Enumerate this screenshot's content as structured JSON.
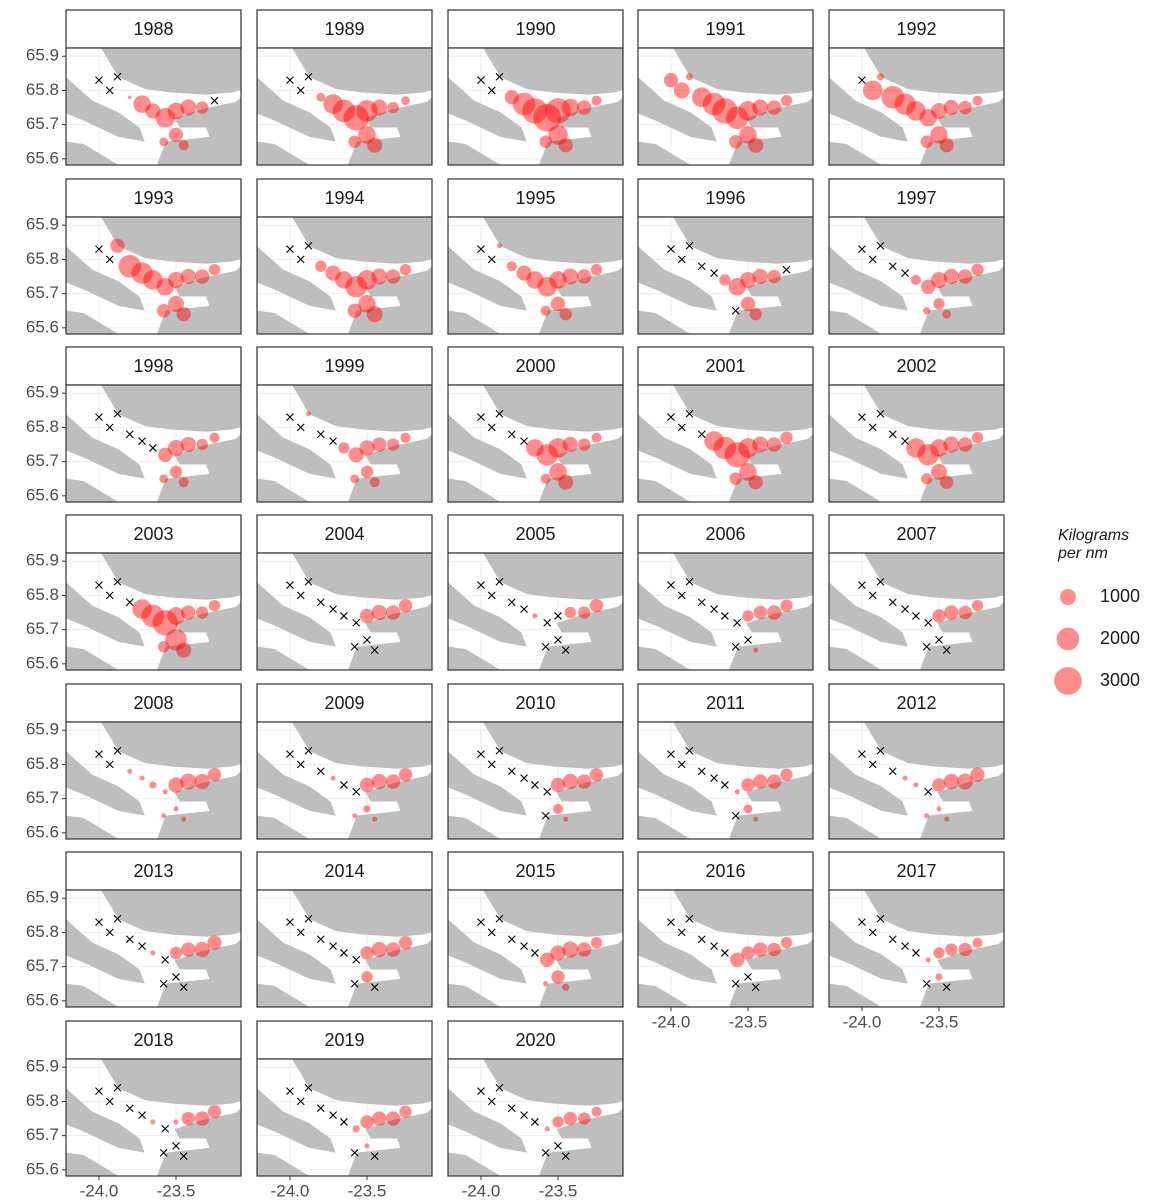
{
  "chart_data": {
    "type": "scatter",
    "x": [
      -24.0,
      -23.93,
      -23.88,
      -23.8,
      -23.72,
      -23.65,
      -23.57,
      -23.5,
      -23.42,
      -23.33,
      -23.25,
      -23.5,
      -23.45,
      -23.58
    ],
    "y": [
      65.83,
      65.8,
      65.84,
      65.78,
      65.76,
      65.74,
      65.72,
      65.74,
      65.75,
      65.75,
      65.77,
      65.67,
      65.64,
      65.65
    ],
    "xlim": [
      -24.214,
      -23.078
    ],
    "ylim": [
      65.582,
      65.924
    ],
    "xticks": [
      {
        "value": -24,
        "label": "-24.0"
      },
      -23.5
    ],
    "yticks": [
      65.6,
      65.7,
      65.8,
      65.9
    ],
    "grid": true,
    "color": "#ff0000",
    "legend_title": [
      "Kilograms",
      " per nm"
    ],
    "legend_values": [
      1000,
      2000,
      3000
    ],
    "facets": [
      {
        "title": "1988",
        "values": [
          0,
          0,
          0,
          50,
          1200,
          900,
          1500,
          1100,
          1000,
          600,
          0,
          800,
          400,
          300
        ]
      },
      {
        "title": "1989",
        "values": [
          0,
          0,
          0,
          300,
          1500,
          2000,
          2500,
          1800,
          1000,
          500,
          300,
          1200,
          900,
          600
        ]
      },
      {
        "title": "1990",
        "values": [
          0,
          0,
          0,
          800,
          2000,
          2500,
          3000,
          2500,
          1200,
          800,
          400,
          1500,
          800,
          600
        ]
      },
      {
        "title": "1991",
        "values": [
          800,
          1000,
          200,
          1500,
          2000,
          2500,
          2000,
          1500,
          1000,
          800,
          500,
          1200,
          900,
          700
        ]
      },
      {
        "title": "1992",
        "values": [
          0,
          1500,
          200,
          2000,
          1800,
          1500,
          1200,
          1000,
          900,
          700,
          400,
          1200,
          800,
          600
        ]
      },
      {
        "title": "1993",
        "values": [
          0,
          0,
          800,
          2000,
          1800,
          1500,
          1200,
          1000,
          900,
          800,
          500,
          1000,
          800,
          700
        ]
      },
      {
        "title": "1994",
        "values": [
          0,
          0,
          0,
          500,
          900,
          1200,
          1800,
          1500,
          1000,
          800,
          500,
          1200,
          1000,
          800
        ]
      },
      {
        "title": "1995",
        "values": [
          0,
          0,
          100,
          400,
          900,
          1200,
          1500,
          1200,
          1000,
          800,
          500,
          800,
          600,
          400
        ]
      },
      {
        "title": "1996",
        "values": [
          0,
          0,
          0,
          0,
          0,
          500,
          1200,
          1000,
          900,
          700,
          0,
          800,
          600,
          0
        ]
      },
      {
        "title": "1997",
        "values": [
          0,
          0,
          0,
          0,
          0,
          400,
          800,
          1000,
          900,
          800,
          600,
          500,
          300,
          200
        ]
      },
      {
        "title": "1998",
        "values": [
          0,
          0,
          0,
          0,
          0,
          0,
          800,
          1000,
          900,
          500,
          400,
          600,
          400,
          300
        ]
      },
      {
        "title": "1999",
        "values": [
          0,
          0,
          100,
          0,
          0,
          500,
          900,
          900,
          800,
          600,
          400,
          600,
          400,
          300
        ]
      },
      {
        "title": "2000",
        "values": [
          0,
          0,
          0,
          0,
          0,
          1200,
          1800,
          1500,
          900,
          600,
          400,
          1200,
          900,
          400
        ]
      },
      {
        "title": "2001",
        "values": [
          0,
          0,
          0,
          0,
          1500,
          2000,
          2500,
          1500,
          1000,
          800,
          600,
          1200,
          800,
          600
        ]
      },
      {
        "title": "2002",
        "values": [
          0,
          0,
          0,
          0,
          0,
          1500,
          1800,
          1200,
          1000,
          800,
          500,
          1000,
          700,
          500
        ]
      },
      {
        "title": "2003",
        "values": [
          0,
          0,
          0,
          0,
          1500,
          2000,
          2500,
          1200,
          800,
          600,
          500,
          1800,
          900,
          500
        ]
      },
      {
        "title": "2004",
        "values": [
          0,
          0,
          0,
          0,
          0,
          0,
          0,
          800,
          900,
          800,
          700,
          0,
          0,
          0
        ]
      },
      {
        "title": "2005",
        "values": [
          0,
          0,
          0,
          0,
          0,
          100,
          0,
          0,
          500,
          600,
          700,
          0,
          0,
          0
        ]
      },
      {
        "title": "2006",
        "values": [
          0,
          0,
          0,
          0,
          0,
          0,
          0,
          500,
          700,
          800,
          600,
          0,
          100,
          0
        ]
      },
      {
        "title": "2007",
        "values": [
          0,
          0,
          0,
          0,
          0,
          0,
          0,
          700,
          800,
          700,
          500,
          0,
          0,
          0
        ]
      },
      {
        "title": "2008",
        "values": [
          0,
          0,
          0,
          100,
          100,
          200,
          100,
          900,
          1000,
          900,
          700,
          100,
          100,
          100
        ]
      },
      {
        "title": "2009",
        "values": [
          0,
          0,
          0,
          0,
          100,
          0,
          0,
          800,
          900,
          800,
          700,
          200,
          100,
          100
        ]
      },
      {
        "title": "2010",
        "values": [
          0,
          0,
          0,
          0,
          0,
          0,
          0,
          800,
          900,
          800,
          700,
          400,
          100,
          0
        ]
      },
      {
        "title": "2011",
        "values": [
          0,
          0,
          0,
          0,
          0,
          0,
          100,
          700,
          800,
          800,
          600,
          300,
          100,
          0
        ]
      },
      {
        "title": "2012",
        "values": [
          0,
          0,
          0,
          0,
          100,
          100,
          0,
          700,
          900,
          1000,
          800,
          100,
          100,
          100
        ]
      },
      {
        "title": "2013",
        "values": [
          0,
          0,
          0,
          0,
          0,
          100,
          0,
          600,
          800,
          900,
          800,
          0,
          0,
          0
        ]
      },
      {
        "title": "2014",
        "values": [
          0,
          0,
          0,
          0,
          0,
          0,
          0,
          700,
          900,
          800,
          700,
          500,
          0,
          0
        ]
      },
      {
        "title": "2015",
        "values": [
          0,
          0,
          0,
          0,
          0,
          0,
          800,
          900,
          1000,
          800,
          500,
          700,
          200,
          100
        ]
      },
      {
        "title": "2016",
        "values": [
          0,
          0,
          0,
          0,
          0,
          0,
          800,
          700,
          800,
          700,
          500,
          0,
          0,
          0
        ]
      },
      {
        "title": "2017",
        "values": [
          0,
          0,
          0,
          0,
          0,
          0,
          100,
          500,
          600,
          700,
          400,
          200,
          0,
          0
        ]
      },
      {
        "title": "2018",
        "values": [
          0,
          0,
          0,
          0,
          0,
          100,
          0,
          100,
          700,
          800,
          700,
          0,
          0,
          0
        ]
      },
      {
        "title": "2019",
        "values": [
          0,
          0,
          0,
          0,
          0,
          0,
          200,
          700,
          800,
          800,
          600,
          100,
          0,
          0
        ]
      },
      {
        "title": "2020",
        "values": [
          0,
          0,
          0,
          0,
          0,
          0,
          100,
          500,
          700,
          600,
          400,
          0,
          0,
          0
        ]
      }
    ]
  }
}
